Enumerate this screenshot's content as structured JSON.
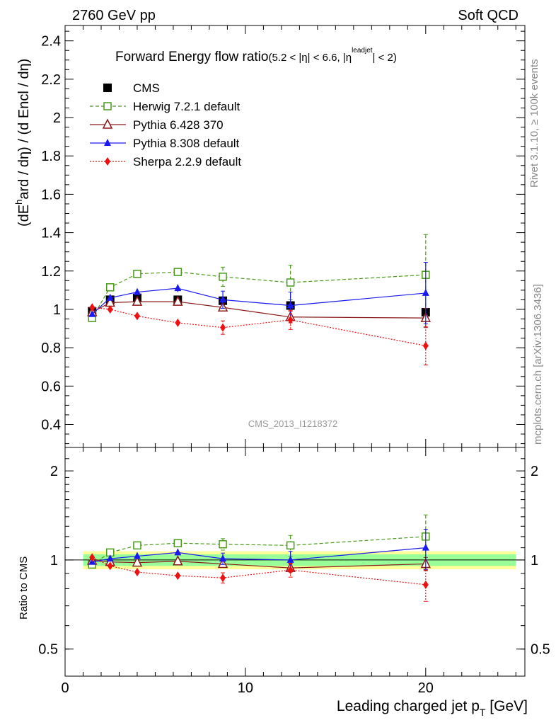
{
  "header": {
    "left": "2760 GeV pp",
    "right": "Soft QCD"
  },
  "side": {
    "rivet": "Rivet 3.1.10, ≥ 100k events",
    "mcplots": "mcplots.cern.ch [arXiv:1306.3436]"
  },
  "watermark": "CMS_2013_I1218372",
  "title": {
    "main": "Forward Energy flow ratio",
    "sub_a": "(5.2 < |η| < 6.6, |η",
    "sup": "leadjet",
    "sub_b": "| < 2)"
  },
  "ylabel_main": {
    "a": "(dE",
    "sup": "h",
    "b": "ard / dη) / (d E",
    "c": "ncl / dη)"
  },
  "ylabel_ratio": "Ratio to CMS",
  "xlabel": {
    "a": "Leading charged jet p",
    "sub": "T",
    "b": " [GeV]"
  },
  "chart_data": [
    {
      "type": "scatter",
      "panel": "main",
      "xlim": [
        0,
        25.5
      ],
      "ylim": [
        0.28,
        2.48
      ],
      "yticks": [
        "0.4",
        "0.6",
        "0.8",
        "1",
        "1.2",
        "1.4",
        "1.6",
        "1.8",
        "2",
        "2.2",
        "2.4"
      ],
      "xticks": [
        "0",
        "10",
        "20"
      ],
      "legend_position": "top-left",
      "series": [
        {
          "name": "CMS",
          "color": "#000000",
          "marker": "square-filled",
          "line": "none",
          "x": [
            1.5,
            2.5,
            4.0,
            6.25,
            8.75,
            12.5,
            20.0
          ],
          "y": [
            0.99,
            1.05,
            1.06,
            1.05,
            1.045,
            1.02,
            0.985
          ],
          "err": [
            0.01,
            0.01,
            0.01,
            0.01,
            0.01,
            0.015,
            0.02
          ]
        },
        {
          "name": "Herwig 7.2.1 default",
          "color": "#4a9a1a",
          "marker": "square-open",
          "line": "dashed",
          "x": [
            1.5,
            2.5,
            4.0,
            6.25,
            8.75,
            12.5,
            20.0
          ],
          "y": [
            0.955,
            1.115,
            1.185,
            1.195,
            1.17,
            1.14,
            1.18
          ],
          "err": [
            0.01,
            0.015,
            0.015,
            0.02,
            0.05,
            0.09,
            0.21
          ]
        },
        {
          "name": "Pythia 6.428 370",
          "color": "#8b1a1a",
          "marker": "triangle-open",
          "line": "solid",
          "x": [
            1.5,
            2.5,
            4.0,
            6.25,
            8.75,
            12.5,
            20.0
          ],
          "y": [
            0.985,
            1.035,
            1.04,
            1.04,
            1.01,
            0.96,
            0.955
          ],
          "err": [
            0.01,
            0.01,
            0.01,
            0.01,
            0.02,
            0.03,
            0.05
          ]
        },
        {
          "name": "Pythia 8.308 default",
          "color": "#1a1aee",
          "marker": "triangle-filled",
          "line": "solid",
          "x": [
            1.5,
            2.5,
            4.0,
            6.25,
            8.75,
            12.5,
            20.0
          ],
          "y": [
            0.975,
            1.06,
            1.09,
            1.11,
            1.05,
            1.02,
            1.085
          ],
          "err": [
            0.01,
            0.01,
            0.01,
            0.02,
            0.045,
            0.07,
            0.16
          ]
        },
        {
          "name": "Sherpa 2.2.9 default",
          "color": "#ee1111",
          "marker": "diamond-filled",
          "line": "dotted",
          "x": [
            1.5,
            2.5,
            4.0,
            6.25,
            8.75,
            12.5,
            20.0
          ],
          "y": [
            1.01,
            1.0,
            0.965,
            0.93,
            0.905,
            0.945,
            0.81
          ],
          "err": [
            0.01,
            0.01,
            0.01,
            0.02,
            0.035,
            0.05,
            0.1
          ]
        }
      ]
    },
    {
      "type": "scatter",
      "panel": "ratio",
      "xlim": [
        0,
        25.5
      ],
      "ylim": [
        0.405,
        2.4
      ],
      "yscale": "log",
      "yticks": [
        "0.5",
        "1",
        "2"
      ],
      "xticks": [
        "0",
        "10",
        "20"
      ],
      "band": {
        "inner": [
          0.955,
          1.045
        ],
        "outer": [
          0.93,
          1.07
        ]
      },
      "series": [
        {
          "name": "Herwig 7.2.1 default",
          "color": "#4a9a1a",
          "marker": "square-open",
          "line": "dashed",
          "x": [
            1.5,
            2.5,
            4.0,
            6.25,
            8.75,
            12.5,
            20.0
          ],
          "y": [
            0.965,
            1.06,
            1.12,
            1.14,
            1.13,
            1.12,
            1.2
          ],
          "err": [
            0.01,
            0.015,
            0.015,
            0.02,
            0.05,
            0.09,
            0.22
          ]
        },
        {
          "name": "Pythia 6.428 370",
          "color": "#8b1a1a",
          "marker": "triangle-open",
          "line": "solid",
          "x": [
            1.5,
            2.5,
            4.0,
            6.25,
            8.75,
            12.5,
            20.0
          ],
          "y": [
            0.995,
            0.985,
            0.98,
            0.99,
            0.97,
            0.94,
            0.97
          ],
          "err": [
            0.01,
            0.01,
            0.01,
            0.01,
            0.02,
            0.03,
            0.05
          ]
        },
        {
          "name": "Pythia 8.308 default",
          "color": "#1a1aee",
          "marker": "triangle-filled",
          "line": "solid",
          "x": [
            1.5,
            2.5,
            4.0,
            6.25,
            8.75,
            12.5,
            20.0
          ],
          "y": [
            0.985,
            1.01,
            1.03,
            1.06,
            1.01,
            1.0,
            1.1
          ],
          "err": [
            0.01,
            0.01,
            0.01,
            0.02,
            0.045,
            0.07,
            0.17
          ]
        },
        {
          "name": "Sherpa 2.2.9 default",
          "color": "#ee1111",
          "marker": "diamond-filled",
          "line": "dotted",
          "x": [
            1.5,
            2.5,
            4.0,
            6.25,
            8.75,
            12.5,
            20.0
          ],
          "y": [
            1.02,
            0.955,
            0.91,
            0.885,
            0.87,
            0.925,
            0.825
          ],
          "err": [
            0.01,
            0.01,
            0.01,
            0.02,
            0.035,
            0.05,
            0.1
          ]
        }
      ]
    }
  ]
}
